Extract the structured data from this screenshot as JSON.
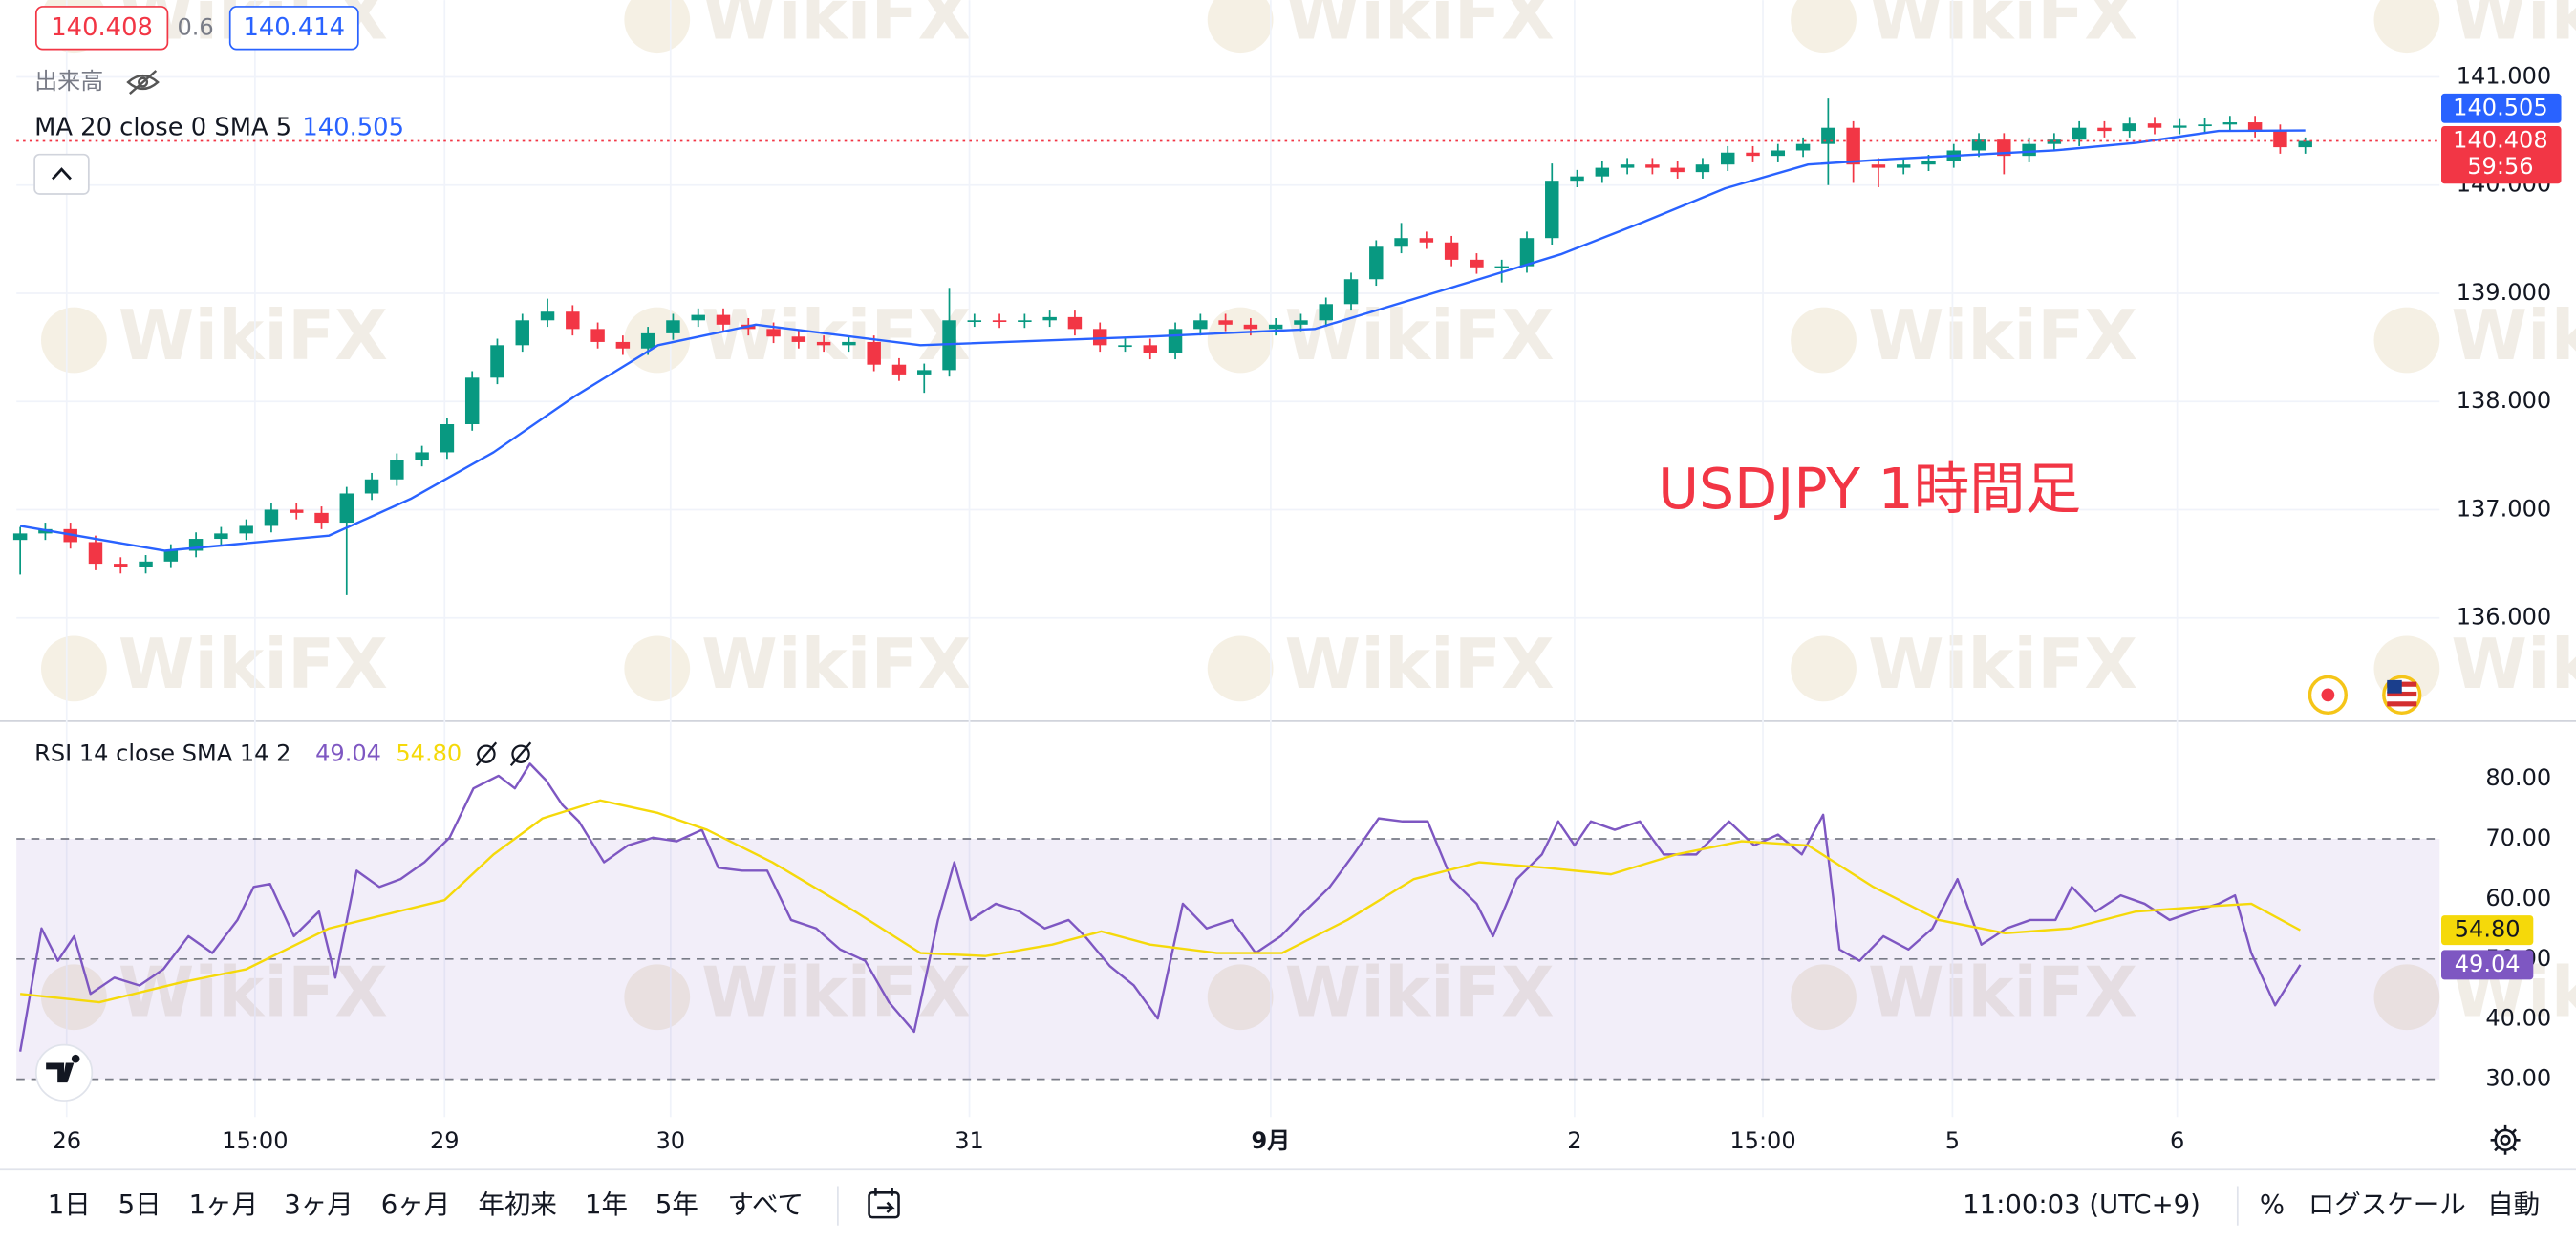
{
  "quote": {
    "bid": 140.408,
    "spread": 0.6,
    "ask": 140.414
  },
  "volume_label": "出来高",
  "watermark": "WikiFX",
  "chart_data": [
    {
      "type": "candlestick",
      "annotation": "USDJPY 1時間足",
      "countdown": "59:56",
      "up_color": "#089981",
      "down_color": "#f23645",
      "xlim": [
        -0.3,
        192.7
      ],
      "ylim": [
        135.06,
        141.71
      ],
      "yticks": [
        {
          "value": 136,
          "label": "136.000"
        },
        {
          "value": 137,
          "label": "137.000"
        },
        {
          "value": 138,
          "label": "138.000"
        },
        {
          "value": 139,
          "label": "139.000"
        },
        {
          "value": 140,
          "label": "140.000"
        },
        {
          "value": 141,
          "label": "141.000"
        }
      ],
      "grid": true,
      "x": [
        0,
        2,
        4,
        6,
        8,
        10,
        12,
        14,
        16,
        18,
        20,
        22,
        24,
        26,
        28,
        30,
        32,
        34,
        36,
        38,
        40,
        42,
        44,
        46,
        48,
        50,
        52,
        54,
        56,
        58,
        60,
        62,
        64,
        66,
        68,
        70,
        72,
        74,
        76,
        78,
        80,
        82,
        84,
        86,
        88,
        90,
        92,
        94,
        96,
        98,
        100,
        102,
        104,
        106,
        108,
        110,
        112,
        114,
        116,
        118,
        120,
        122,
        124,
        126,
        128,
        130,
        132,
        134,
        136,
        138,
        140,
        142,
        144,
        146,
        148,
        150,
        152,
        154,
        156,
        158,
        160,
        162,
        164,
        166,
        168,
        170,
        172,
        174,
        176,
        178,
        180,
        182
      ],
      "open": [
        136.72,
        136.78,
        136.82,
        136.7,
        136.5,
        136.47,
        136.52,
        136.62,
        136.73,
        136.78,
        136.85,
        137.0,
        136.97,
        136.88,
        137.15,
        137.28,
        137.46,
        137.53,
        137.79,
        138.22,
        138.52,
        138.75,
        138.83,
        138.67,
        138.55,
        138.49,
        138.63,
        138.75,
        138.8,
        138.71,
        138.67,
        138.6,
        138.55,
        138.52,
        138.55,
        138.34,
        138.25,
        138.29,
        138.75,
        138.75,
        138.74,
        138.75,
        138.78,
        138.67,
        138.52,
        138.52,
        138.45,
        138.67,
        138.75,
        138.71,
        138.67,
        138.71,
        138.75,
        138.9,
        139.13,
        139.43,
        139.51,
        139.47,
        139.31,
        139.24,
        139.25,
        139.51,
        140.04,
        140.08,
        140.16,
        140.19,
        140.16,
        140.12,
        140.19,
        140.3,
        140.27,
        140.32,
        140.38,
        140.53,
        140.19,
        140.16,
        140.19,
        140.22,
        140.32,
        140.42,
        140.27,
        140.38,
        140.42,
        140.53,
        140.5,
        140.57,
        140.53,
        140.55,
        140.56,
        140.58,
        140.5,
        140.35
      ],
      "high": [
        136.84,
        136.88,
        136.88,
        136.76,
        136.56,
        136.58,
        136.68,
        136.79,
        136.84,
        136.91,
        137.06,
        137.06,
        137.03,
        137.21,
        137.34,
        137.52,
        137.59,
        137.85,
        138.28,
        138.58,
        138.81,
        138.95,
        138.89,
        138.73,
        138.61,
        138.69,
        138.81,
        138.86,
        138.86,
        138.77,
        138.73,
        138.66,
        138.61,
        138.61,
        138.61,
        138.4,
        138.35,
        139.05,
        138.81,
        138.81,
        138.81,
        138.84,
        138.84,
        138.73,
        138.58,
        138.58,
        138.73,
        138.81,
        138.81,
        138.77,
        138.77,
        138.81,
        138.96,
        139.19,
        139.49,
        139.65,
        139.57,
        139.53,
        139.37,
        139.31,
        139.57,
        140.2,
        140.14,
        140.22,
        140.25,
        140.25,
        140.22,
        140.25,
        140.36,
        140.36,
        140.38,
        140.44,
        140.8,
        140.59,
        140.25,
        140.25,
        140.28,
        140.38,
        140.48,
        140.48,
        140.44,
        140.48,
        140.59,
        140.59,
        140.63,
        140.63,
        140.61,
        140.62,
        140.64,
        140.64,
        140.56,
        140.44
      ],
      "low": [
        136.4,
        136.72,
        136.64,
        136.44,
        136.41,
        136.41,
        136.46,
        136.56,
        136.67,
        136.72,
        136.79,
        136.91,
        136.82,
        136.21,
        137.09,
        137.22,
        137.4,
        137.47,
        137.73,
        138.16,
        138.46,
        138.69,
        138.61,
        138.49,
        138.43,
        138.43,
        138.57,
        138.69,
        138.65,
        138.61,
        138.54,
        138.49,
        138.46,
        138.46,
        138.28,
        138.19,
        138.08,
        138.23,
        138.69,
        138.68,
        138.68,
        138.69,
        138.61,
        138.46,
        138.46,
        138.39,
        138.39,
        138.61,
        138.65,
        138.61,
        138.61,
        138.65,
        138.69,
        138.84,
        139.07,
        139.37,
        139.41,
        139.25,
        139.18,
        139.1,
        139.19,
        139.45,
        139.98,
        140.02,
        140.1,
        140.1,
        140.06,
        140.06,
        140.13,
        140.21,
        140.21,
        140.26,
        140.0,
        140.02,
        139.98,
        140.1,
        140.13,
        140.16,
        140.26,
        140.1,
        140.21,
        140.32,
        140.36,
        140.44,
        140.44,
        140.47,
        140.47,
        140.49,
        140.5,
        140.44,
        140.29,
        140.29
      ],
      "close": [
        136.78,
        136.82,
        136.7,
        136.5,
        136.47,
        136.52,
        136.62,
        136.73,
        136.78,
        136.85,
        137.0,
        136.97,
        136.88,
        137.15,
        137.28,
        137.46,
        137.53,
        137.79,
        138.22,
        138.52,
        138.75,
        138.83,
        138.67,
        138.55,
        138.49,
        138.63,
        138.75,
        138.8,
        138.71,
        138.67,
        138.6,
        138.55,
        138.52,
        138.55,
        138.34,
        138.25,
        138.29,
        138.75,
        138.75,
        138.74,
        138.75,
        138.78,
        138.67,
        138.52,
        138.52,
        138.45,
        138.67,
        138.75,
        138.71,
        138.67,
        138.71,
        138.75,
        138.9,
        139.13,
        139.43,
        139.51,
        139.47,
        139.31,
        139.24,
        139.25,
        139.51,
        140.04,
        140.08,
        140.16,
        140.19,
        140.16,
        140.12,
        140.19,
        140.3,
        140.27,
        140.32,
        140.38,
        140.53,
        140.19,
        140.16,
        140.19,
        140.22,
        140.32,
        140.42,
        140.27,
        140.38,
        140.42,
        140.53,
        140.5,
        140.57,
        140.53,
        140.55,
        140.56,
        140.58,
        140.5,
        140.35,
        140.408
      ],
      "series": [
        {
          "name": "MA 20 close 0 SMA 5",
          "color": "#2962ff",
          "x": [
            0,
            11.5,
            24.6,
            31.1,
            37.7,
            44.2,
            50.8,
            58.6,
            71.7,
            90,
            103.1,
            116.2,
            122.7,
            129.3,
            135.8,
            142.4,
            148.9,
            162,
            168.5,
            175.1,
            182
          ],
          "values": [
            136.85,
            136.62,
            136.76,
            137.1,
            137.53,
            138.05,
            138.52,
            138.71,
            138.52,
            138.6,
            138.67,
            139.13,
            139.36,
            139.66,
            139.97,
            140.19,
            140.24,
            140.32,
            140.39,
            140.5,
            140.505
          ]
        }
      ]
    },
    {
      "type": "line",
      "title": "RSI 14 close SMA 14 2",
      "xlim": [
        -0.3,
        192.7
      ],
      "ylim": [
        23.7,
        89.3
      ],
      "yticks": [
        {
          "value": 30,
          "label": "30.00"
        },
        {
          "value": 40,
          "label": "40.00"
        },
        {
          "value": 50,
          "label": "50.00"
        },
        {
          "value": 60,
          "label": "60.00"
        },
        {
          "value": 70,
          "label": "70.00"
        },
        {
          "value": 80,
          "label": "80.00"
        }
      ],
      "band": [
        30,
        70
      ],
      "band_color": "#7e57c2",
      "levels": [
        70,
        50,
        30
      ],
      "xticks": [
        {
          "value": 3.7,
          "label": "26"
        },
        {
          "value": 18.7,
          "label": "15:00"
        },
        {
          "value": 33.8,
          "label": "29"
        },
        {
          "value": 51.8,
          "label": "30"
        },
        {
          "value": 75.6,
          "label": "31"
        },
        {
          "value": 99.6,
          "label": "9月"
        },
        {
          "value": 123.8,
          "label": "2"
        },
        {
          "value": 138.8,
          "label": "15:00"
        },
        {
          "value": 153.9,
          "label": "5"
        },
        {
          "value": 171.8,
          "label": "6"
        }
      ],
      "series": [
        {
          "color": "#7e57c2",
          "x": [
            0,
            1.7,
            3,
            4.3,
            5.6,
            7.5,
            9.5,
            11.4,
            13.4,
            15.3,
            17.3,
            18.6,
            19.9,
            21.8,
            23.8,
            25.1,
            26.8,
            28.6,
            30.3,
            32.2,
            34.2,
            36.1,
            38.1,
            39.4,
            40.6,
            41.9,
            43.2,
            44.5,
            46.5,
            48.4,
            50.4,
            52.3,
            54.3,
            55.6,
            57.5,
            59.5,
            61.4,
            63.4,
            65.3,
            67.3,
            69.2,
            71.2,
            73.1,
            74.4,
            75.7,
            77.7,
            79.6,
            81.6,
            83.5,
            84.8,
            86.8,
            88.7,
            90.6,
            92.6,
            94.5,
            96.5,
            98.4,
            100.4,
            102.3,
            104.3,
            106.2,
            108.2,
            110.1,
            112.1,
            114,
            116,
            117.3,
            119.2,
            121.2,
            122.5,
            123.8,
            125.1,
            127,
            129,
            130.9,
            133.5,
            136.1,
            138.1,
            140,
            141.9,
            143.6,
            144.9,
            146.5,
            148.4,
            150.4,
            152.3,
            154.3,
            156.2,
            158.2,
            160.1,
            162.1,
            163.4,
            165.3,
            167.3,
            169.2,
            171.2,
            173.1,
            175.1,
            176.4,
            177.7,
            179.6,
            181.6
          ],
          "values": [
            34.6,
            55.1,
            49.7,
            53.8,
            44.2,
            46.9,
            45.6,
            48.3,
            53.8,
            51.0,
            56.5,
            62,
            62.5,
            53.8,
            57.9,
            46.9,
            64.7,
            62,
            63.3,
            66.1,
            70.2,
            78.4,
            80.5,
            78.4,
            82.5,
            79.7,
            75.6,
            72.9,
            66.1,
            68.9,
            70.2,
            69.6,
            71.5,
            65.2,
            64.7,
            64.7,
            56.5,
            55.1,
            51.6,
            49.7,
            42.8,
            37.9,
            56.5,
            66.1,
            56.5,
            59.2,
            57.9,
            55.1,
            56.5,
            53.8,
            48.8,
            45.6,
            40.1,
            59.2,
            55.1,
            56.5,
            51.0,
            53.8,
            57.9,
            62,
            67.4,
            73.4,
            72.9,
            72.9,
            63.3,
            59.2,
            53.8,
            63.3,
            67.4,
            72.9,
            68.9,
            72.9,
            71.5,
            72.9,
            67.4,
            67.4,
            72.9,
            68.9,
            70.7,
            67.4,
            74.0,
            51.6,
            49.7,
            53.8,
            51.6,
            55.1,
            63.3,
            52.4,
            55.1,
            56.5,
            56.5,
            62,
            57.9,
            60.6,
            59.2,
            56.5,
            57.9,
            59.2,
            60.6,
            51.0,
            42.3,
            49.04
          ]
        },
        {
          "color": "#f5d90a",
          "x": [
            0,
            6.3,
            12.8,
            18.0,
            24.6,
            33.8,
            37.7,
            41.6,
            46.2,
            50.8,
            54.7,
            59.9,
            66.5,
            71.7,
            76.9,
            82.2,
            86.1,
            90.0,
            95.3,
            100.5,
            105.7,
            111.0,
            116.2,
            121.4,
            126.7,
            131.9,
            137.1,
            142.4,
            147.6,
            152.8,
            158.1,
            163.3,
            168.5,
            173.8,
            177.7,
            181.6
          ],
          "values": [
            44.2,
            42.8,
            46.1,
            48.3,
            55.1,
            59.8,
            67.4,
            73.4,
            76.4,
            74.3,
            71.5,
            66.1,
            57.9,
            51.0,
            50.5,
            52.4,
            54.6,
            52.4,
            51.0,
            51.0,
            56.5,
            63.3,
            66.1,
            65.2,
            64.1,
            67.4,
            69.6,
            68.9,
            62,
            56.5,
            54.3,
            55.1,
            57.9,
            58.7,
            59.2,
            54.8
          ],
          "last_label": "54.80"
        }
      ]
    }
  ],
  "bottom_bar": {
    "ranges": [
      "1日",
      "5日",
      "1ヶ月",
      "3ヶ月",
      "6ヶ月",
      "年初来",
      "1年",
      "5年",
      "すべて"
    ],
    "clock": "11:00:03 (UTC+9)",
    "percent": "%",
    "log_scale": "ログスケール",
    "auto": "自動"
  }
}
